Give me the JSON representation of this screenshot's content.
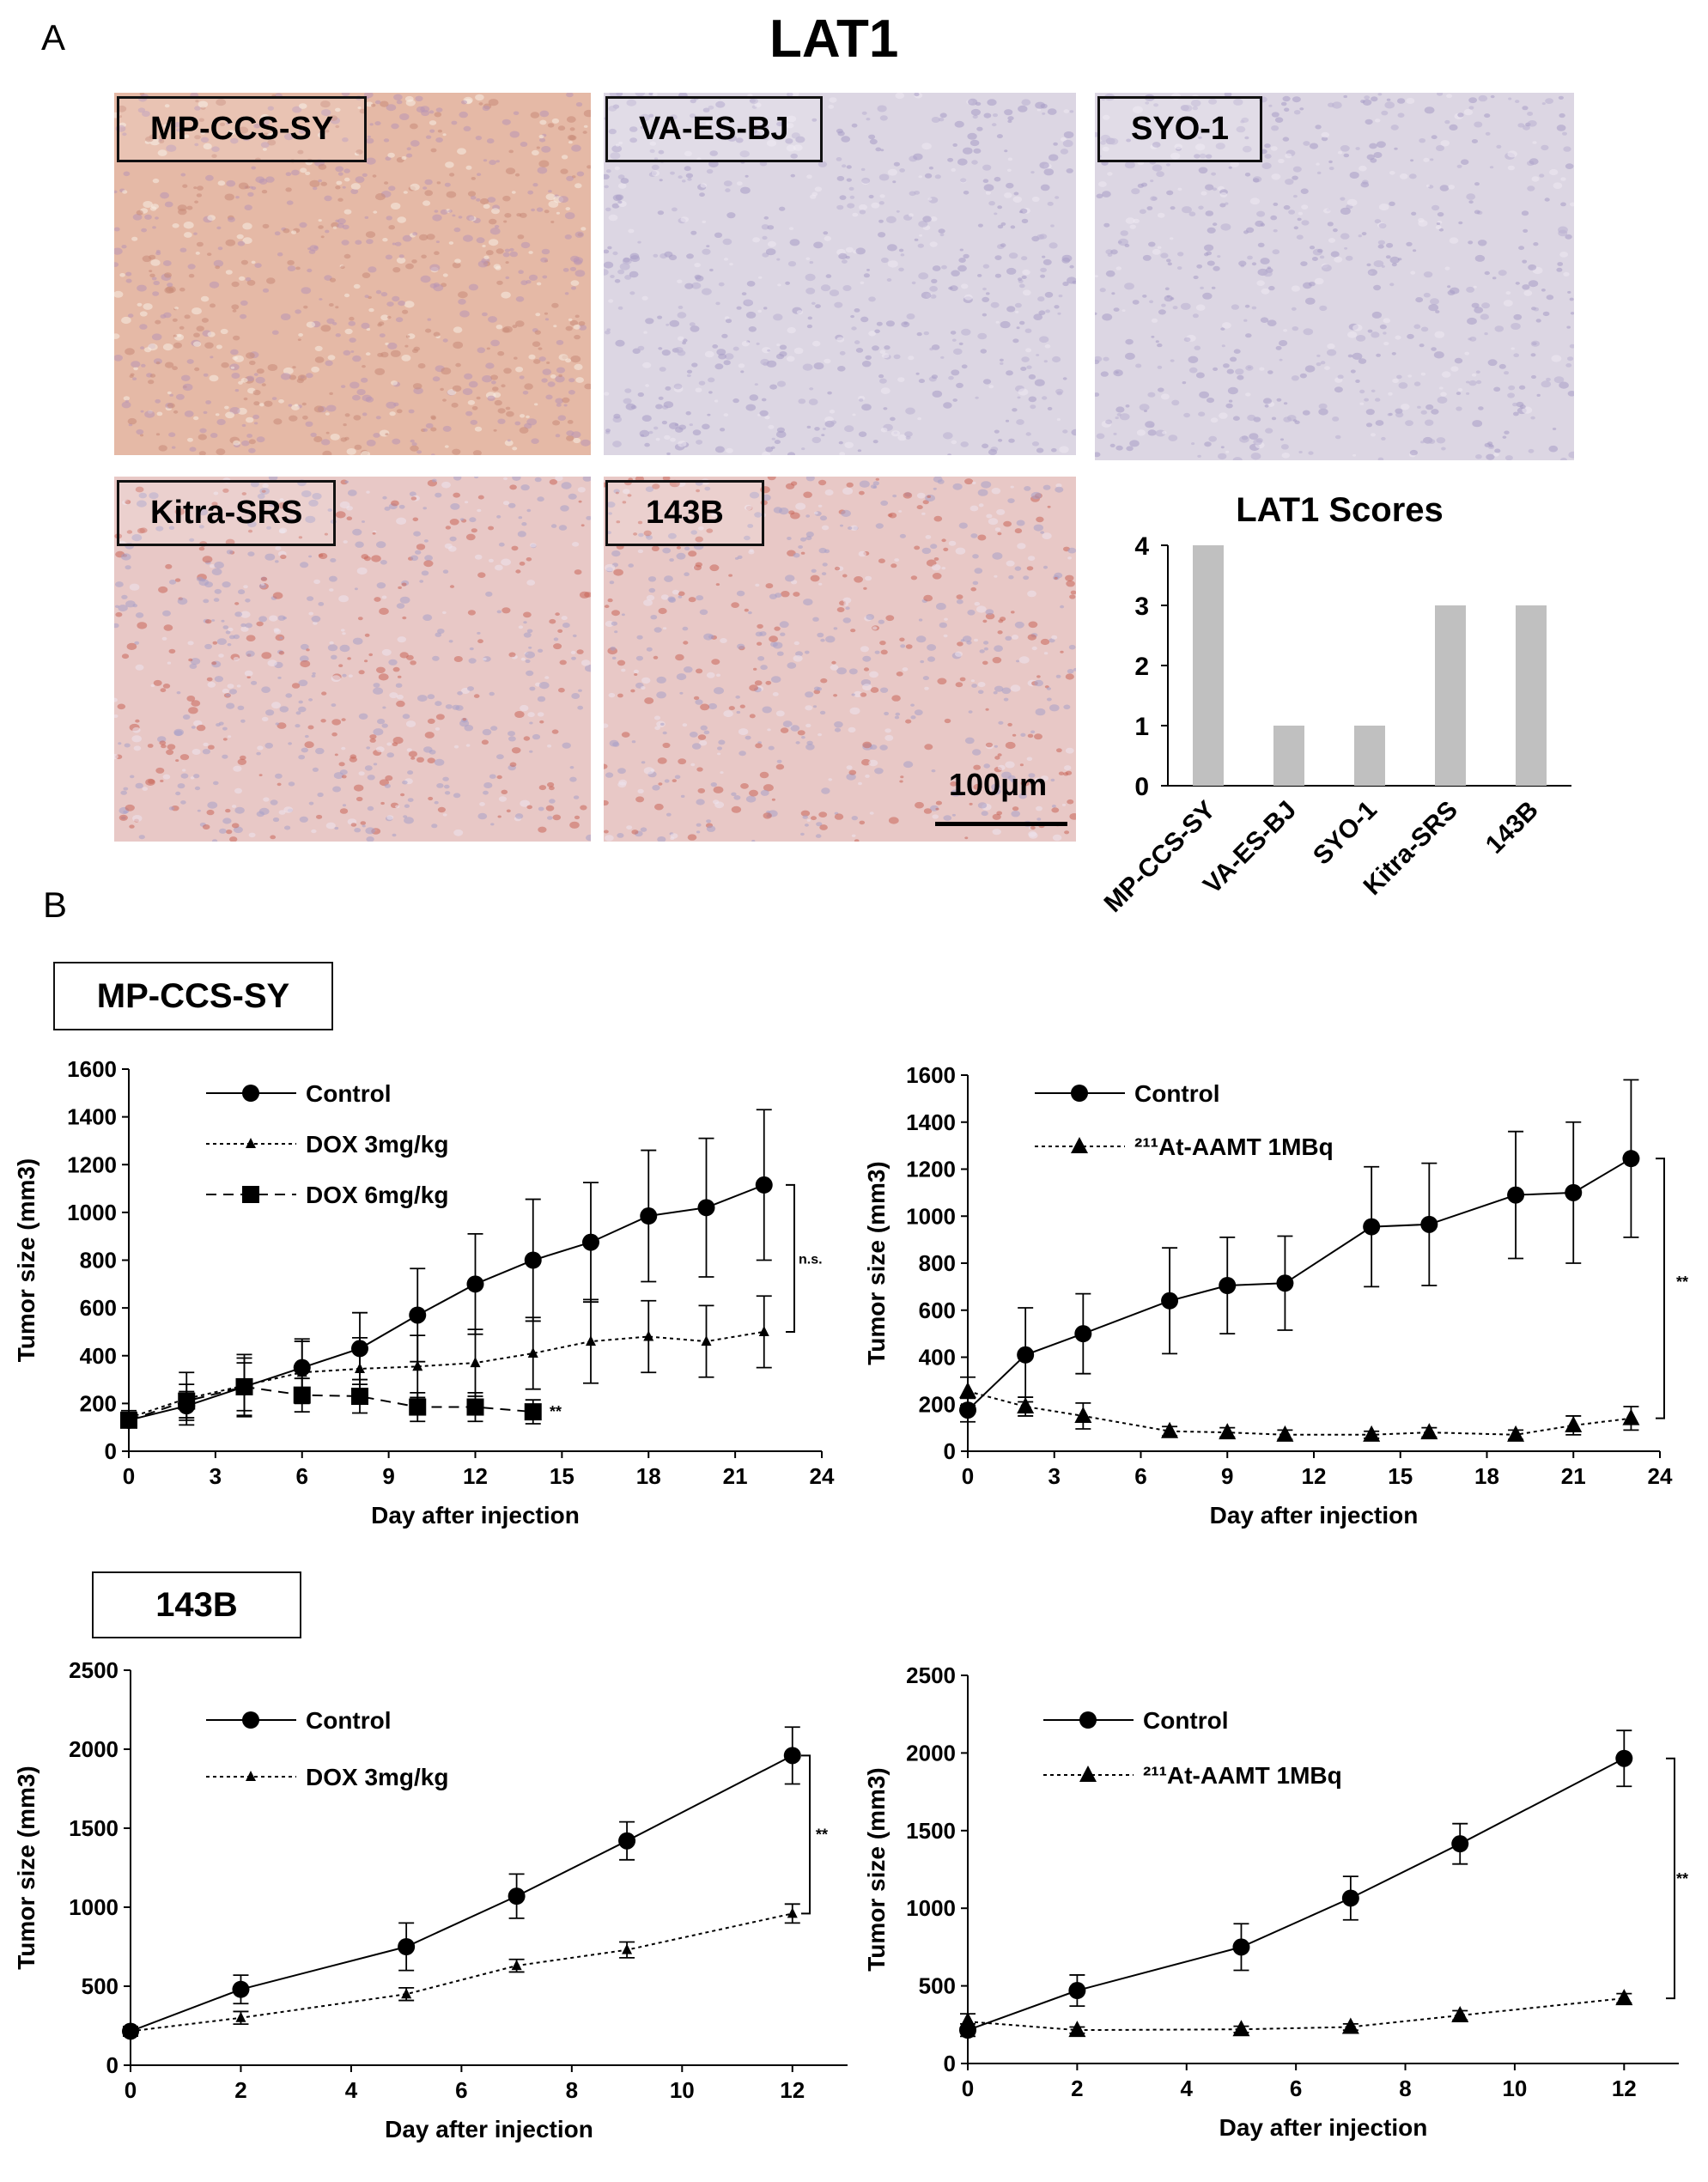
{
  "panel_a": {
    "letter": "A",
    "title": "LAT1",
    "images": [
      {
        "label": "MP-CCS-SY",
        "stain": "strong"
      },
      {
        "label": "VA-ES-BJ",
        "stain": "weak"
      },
      {
        "label": "SYO-1",
        "stain": "weak"
      },
      {
        "label": "Kitra-SRS",
        "stain": "medium"
      },
      {
        "label": "143B",
        "stain": "medium"
      }
    ],
    "scale_bar": "100μm"
  },
  "panel_b": {
    "letter": "B",
    "group1_label": "MP-CCS-SY",
    "group2_label": "143B"
  },
  "colors": {
    "bar": "#c0c0c0",
    "ihc_strong": "#e5b9a6",
    "ihc_medium": "#e8c8c6",
    "ihc_weak": "#dcd6e3"
  },
  "chart_data": [
    {
      "id": "lat1_scores",
      "type": "bar",
      "title": "LAT1 Scores",
      "categories": [
        "MP-CCS-SY",
        "VA-ES-BJ",
        "SYO-1",
        "Kitra-SRS",
        "143B"
      ],
      "values": [
        4,
        1,
        1,
        3,
        3
      ],
      "ylim": [
        0,
        4
      ],
      "yticks": [
        0,
        1,
        2,
        3,
        4
      ]
    },
    {
      "id": "mpccs_dox",
      "type": "line",
      "xlabel": "Day after injection",
      "ylabel": "Tumor size (mm3)",
      "xlim": [
        0,
        24
      ],
      "xticks": [
        0,
        3,
        6,
        9,
        12,
        15,
        18,
        21,
        24
      ],
      "ylim": [
        0,
        1600
      ],
      "yticks": [
        0,
        200,
        400,
        600,
        800,
        1000,
        1200,
        1400,
        1600
      ],
      "legend": "top-left",
      "series": [
        {
          "name": "Control",
          "marker": "circle",
          "dash": "solid",
          "x": [
            0,
            2,
            4,
            6,
            8,
            10,
            12,
            14,
            16,
            18,
            20,
            22
          ],
          "y": [
            130,
            190,
            270,
            350,
            430,
            570,
            700,
            800,
            875,
            985,
            1020,
            1115
          ],
          "err": [
            30,
            60,
            120,
            120,
            150,
            195,
            210,
            255,
            250,
            275,
            290,
            315
          ]
        },
        {
          "name": "DOX 3mg/kg",
          "marker": "triangle-small",
          "dash": "dotted",
          "x": [
            0,
            2,
            4,
            6,
            8,
            10,
            12,
            14,
            16,
            18,
            20,
            22
          ],
          "y": [
            140,
            220,
            275,
            330,
            345,
            355,
            370,
            410,
            460,
            480,
            460,
            500
          ],
          "err": [
            30,
            110,
            130,
            130,
            130,
            130,
            140,
            150,
            175,
            150,
            150,
            150
          ]
        },
        {
          "name": "DOX 6mg/kg",
          "marker": "square",
          "dash": "dashed",
          "x": [
            0,
            2,
            4,
            6,
            8,
            10,
            12,
            14
          ],
          "y": [
            130,
            210,
            270,
            235,
            230,
            185,
            185,
            165
          ],
          "err": [
            30,
            70,
            100,
            70,
            70,
            60,
            60,
            50
          ]
        }
      ],
      "annotations": [
        {
          "text": "n.s."
        },
        {
          "text": "**"
        }
      ]
    },
    {
      "id": "mpccs_at",
      "type": "line",
      "xlabel": "Day after injection",
      "ylabel": "Tumor size (mm3)",
      "xlim": [
        0,
        24
      ],
      "xticks": [
        0,
        3,
        6,
        9,
        12,
        15,
        18,
        21,
        24
      ],
      "ylim": [
        0,
        1600
      ],
      "yticks": [
        0,
        200,
        400,
        600,
        800,
        1000,
        1200,
        1400,
        1600
      ],
      "legend": "top-left",
      "series": [
        {
          "name": "Control",
          "marker": "circle",
          "dash": "solid",
          "x": [
            0,
            2,
            4,
            7,
            9,
            11,
            14,
            16,
            19,
            21,
            23
          ],
          "y": [
            175,
            410,
            500,
            640,
            705,
            715,
            955,
            965,
            1090,
            1100,
            1245
          ],
          "err": [
            50,
            200,
            170,
            225,
            205,
            200,
            255,
            260,
            270,
            300,
            335
          ]
        },
        {
          "name": "²¹¹At-AAMT 1MBq",
          "marker": "triangle",
          "dash": "dotted",
          "x": [
            0,
            2,
            4,
            7,
            9,
            11,
            14,
            16,
            19,
            21,
            23
          ],
          "y": [
            255,
            190,
            150,
            85,
            80,
            70,
            70,
            80,
            70,
            110,
            140
          ],
          "err": [
            60,
            40,
            55,
            20,
            20,
            20,
            15,
            20,
            20,
            40,
            50
          ]
        }
      ],
      "annotations": [
        {
          "text": "**"
        }
      ]
    },
    {
      "id": "b143_dox",
      "type": "line",
      "xlabel": "Day after injection",
      "ylabel": "Tumor size (mm3)",
      "xlim": [
        0,
        13
      ],
      "xticks": [
        0,
        2,
        4,
        6,
        8,
        10,
        12
      ],
      "ylim": [
        0,
        2500
      ],
      "yticks": [
        0,
        500,
        1000,
        1500,
        2000,
        2500
      ],
      "legend": "top-left",
      "series": [
        {
          "name": "Control",
          "marker": "circle",
          "dash": "solid",
          "x": [
            0,
            2,
            5,
            7,
            9,
            12
          ],
          "y": [
            215,
            480,
            750,
            1070,
            1420,
            1960
          ],
          "err": [
            30,
            90,
            150,
            140,
            120,
            180
          ]
        },
        {
          "name": "DOX 3mg/kg",
          "marker": "triangle-small",
          "dash": "dotted",
          "x": [
            0,
            2,
            5,
            7,
            9,
            12
          ],
          "y": [
            215,
            300,
            450,
            630,
            730,
            960
          ],
          "err": [
            30,
            40,
            40,
            40,
            50,
            60
          ]
        }
      ],
      "annotations": [
        {
          "text": "**"
        }
      ]
    },
    {
      "id": "b143_at",
      "type": "line",
      "xlabel": "Day after injection",
      "ylabel": "Tumor size (mm3)",
      "xlim": [
        0,
        13
      ],
      "xticks": [
        0,
        2,
        4,
        6,
        8,
        10,
        12
      ],
      "ylim": [
        0,
        2500
      ],
      "yticks": [
        0,
        500,
        1000,
        1500,
        2000,
        2500
      ],
      "legend": "top-left",
      "series": [
        {
          "name": "Control",
          "marker": "circle",
          "dash": "solid",
          "x": [
            0,
            2,
            5,
            7,
            9,
            12
          ],
          "y": [
            215,
            470,
            750,
            1065,
            1415,
            1965
          ],
          "err": [
            40,
            100,
            150,
            140,
            130,
            180
          ]
        },
        {
          "name": "²¹¹At-AAMT 1MBq",
          "marker": "triangle",
          "dash": "dotted",
          "x": [
            0,
            2,
            5,
            7,
            9,
            12
          ],
          "y": [
            270,
            215,
            220,
            235,
            310,
            420
          ],
          "err": [
            50,
            20,
            20,
            20,
            30,
            30
          ]
        }
      ],
      "annotations": [
        {
          "text": "**"
        }
      ]
    }
  ]
}
